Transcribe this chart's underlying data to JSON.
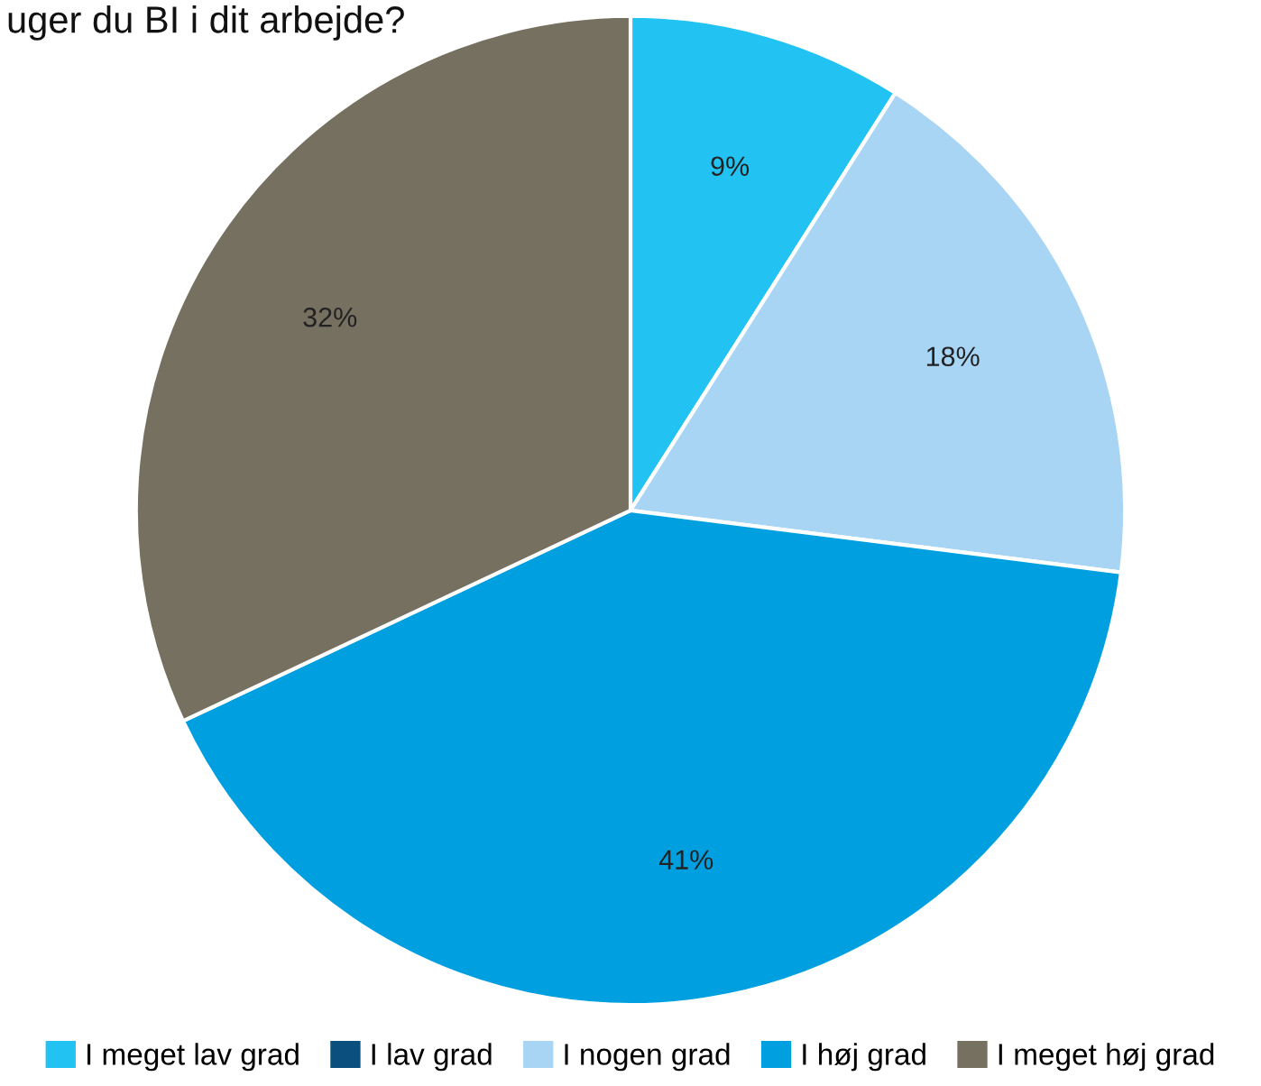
{
  "chart_data": {
    "type": "pie",
    "title": "uger du BI i dit arbejde?",
    "categories": [
      "I meget lav grad",
      "I lav grad",
      "I nogen grad",
      "I høj grad",
      "I meget høj grad"
    ],
    "values": [
      9,
      0,
      18,
      41,
      32
    ],
    "colors": [
      "#22c3f3",
      "#0b4f7f",
      "#a9d5f5",
      "#009fe0",
      "#767060"
    ],
    "value_labels": [
      "9%",
      null,
      "18%",
      "41%",
      "32%"
    ],
    "legend": "bottom"
  }
}
